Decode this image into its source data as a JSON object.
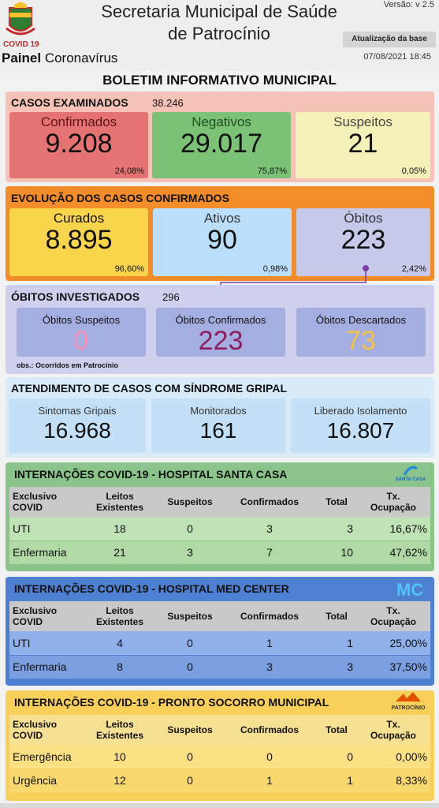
{
  "header": {
    "title_line1": "Secretaria Municipal de Saúde",
    "title_line2": "de Patrocínio",
    "version": "Versão: v 2.5",
    "covid_label": "COVID 19",
    "painel_bold": "Painel",
    "painel_rest": "Coronavírus",
    "update_label": "Atualização da base",
    "update_time": "07/08/2021 18:45"
  },
  "bulletin_title": "BOLETIM INFORMATIVO MUNICIPAL",
  "examined": {
    "title": "CASOS EXAMINADOS",
    "total": "38.246",
    "cards": [
      {
        "label": "Confirmados",
        "value": "9.208",
        "pct": "24,08%"
      },
      {
        "label": "Negativos",
        "value": "29.017",
        "pct": "75,87%"
      },
      {
        "label": "Suspeitos",
        "value": "21",
        "pct": "0,05%"
      }
    ]
  },
  "evolution": {
    "title": "EVOLUÇÃO DOS CASOS CONFIRMADOS",
    "cards": [
      {
        "label": "Curados",
        "value": "8.895",
        "pct": "96,60%"
      },
      {
        "label": "Ativos",
        "value": "90",
        "pct": "0,98%"
      },
      {
        "label": "Óbitos",
        "value": "223",
        "pct": "2,42%"
      }
    ]
  },
  "deaths": {
    "title": "ÓBITOS INVESTIGADOS",
    "total": "296",
    "obs": "obs.: Ocorridos em Patrocínio",
    "cards": [
      {
        "label": "Óbitos Suspeitos",
        "value": "0"
      },
      {
        "label": "Óbitos Confirmados",
        "value": "223"
      },
      {
        "label": "Óbitos Descartados",
        "value": "73"
      }
    ]
  },
  "flu": {
    "title": "ATENDIMENTO DE CASOS COM SÍNDROME GRIPAL",
    "cards": [
      {
        "label": "Sintomas Gripais",
        "value": "16.968"
      },
      {
        "label": "Monitorados",
        "value": "161"
      },
      {
        "label": "Liberado Isolamento",
        "value": "16.807"
      }
    ]
  },
  "table_headers": {
    "c1a": "Exclusivo",
    "c1b": "COVID",
    "c2a": "Leitos",
    "c2b": "Existentes",
    "c3": "Suspeitos",
    "c4": "Confirmados",
    "c5": "Total",
    "c6a": "Tx.",
    "c6b": "Ocupação"
  },
  "santa_casa": {
    "title": "INTERNAÇÕES COVID-19 - HOSPITAL SANTA CASA",
    "logo_text": "SANTA CASA",
    "rows": [
      {
        "name": "UTI",
        "leitos": "18",
        "suspeitos": "0",
        "confirmados": "3",
        "total": "3",
        "tx": "16,67%"
      },
      {
        "name": "Enfermaria",
        "leitos": "21",
        "suspeitos": "3",
        "confirmados": "7",
        "total": "10",
        "tx": "47,62%"
      }
    ]
  },
  "med_center": {
    "title": "INTERNAÇÕES COVID-19 - HOSPITAL MED CENTER",
    "rows": [
      {
        "name": "UTI",
        "leitos": "4",
        "suspeitos": "0",
        "confirmados": "1",
        "total": "1",
        "tx": "25,00%"
      },
      {
        "name": "Enfermaria",
        "leitos": "8",
        "suspeitos": "0",
        "confirmados": "3",
        "total": "3",
        "tx": "37,50%"
      }
    ]
  },
  "pronto_socorro": {
    "title": "INTERNAÇÕES COVID-19 - PRONTO SOCORRO MUNICIPAL",
    "logo_text": "PATROCÍNIO",
    "rows": [
      {
        "name": "Emergência",
        "leitos": "10",
        "suspeitos": "0",
        "confirmados": "0",
        "total": "0",
        "tx": "0,00%"
      },
      {
        "name": "Urgência",
        "leitos": "12",
        "suspeitos": "0",
        "confirmados": "1",
        "total": "1",
        "tx": "8,33%"
      }
    ]
  },
  "colors": {
    "examined_panel": "#f4c2b6",
    "confirmados_card": "#e57373",
    "negativos_card": "#7cc276",
    "suspeitos_card": "#f3f0b8",
    "evolution_panel": "#f28c28",
    "curados_card": "#f8d54a",
    "ativos_card": "#bbdefb",
    "obitos_card": "#c7c9ea",
    "deaths_panel": "#cfd0ee",
    "deaths_card": "#a5aee0",
    "suspect_value": "#f48fb1",
    "confirmed_value": "#8e1e5e",
    "discarded_value": "#f5c343",
    "flu_panel": "#d9ebf9",
    "flu_card": "#c3e0f7",
    "santa_panel": "#8bc48a",
    "medcenter_panel": "#4f7fd1",
    "ps_panel": "#f8cf58"
  }
}
